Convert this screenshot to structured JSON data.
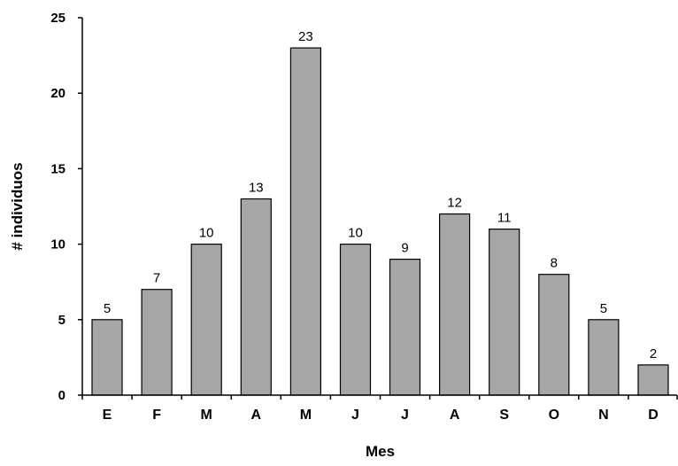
{
  "chart_data": {
    "type": "bar",
    "title": "",
    "xlabel": "Mes",
    "ylabel": "# individuos",
    "categories": [
      "E",
      "F",
      "M",
      "A",
      "M",
      "J",
      "J",
      "A",
      "S",
      "O",
      "N",
      "D"
    ],
    "values": [
      5,
      7,
      10,
      13,
      23,
      10,
      9,
      12,
      11,
      8,
      5,
      2
    ],
    "ylim": [
      0,
      25
    ],
    "yticks": [
      0,
      5,
      10,
      15,
      20,
      25
    ],
    "grid": false,
    "legend": "none",
    "bar_color": "#a6a6a6",
    "bar_edge_color": "#000000"
  }
}
